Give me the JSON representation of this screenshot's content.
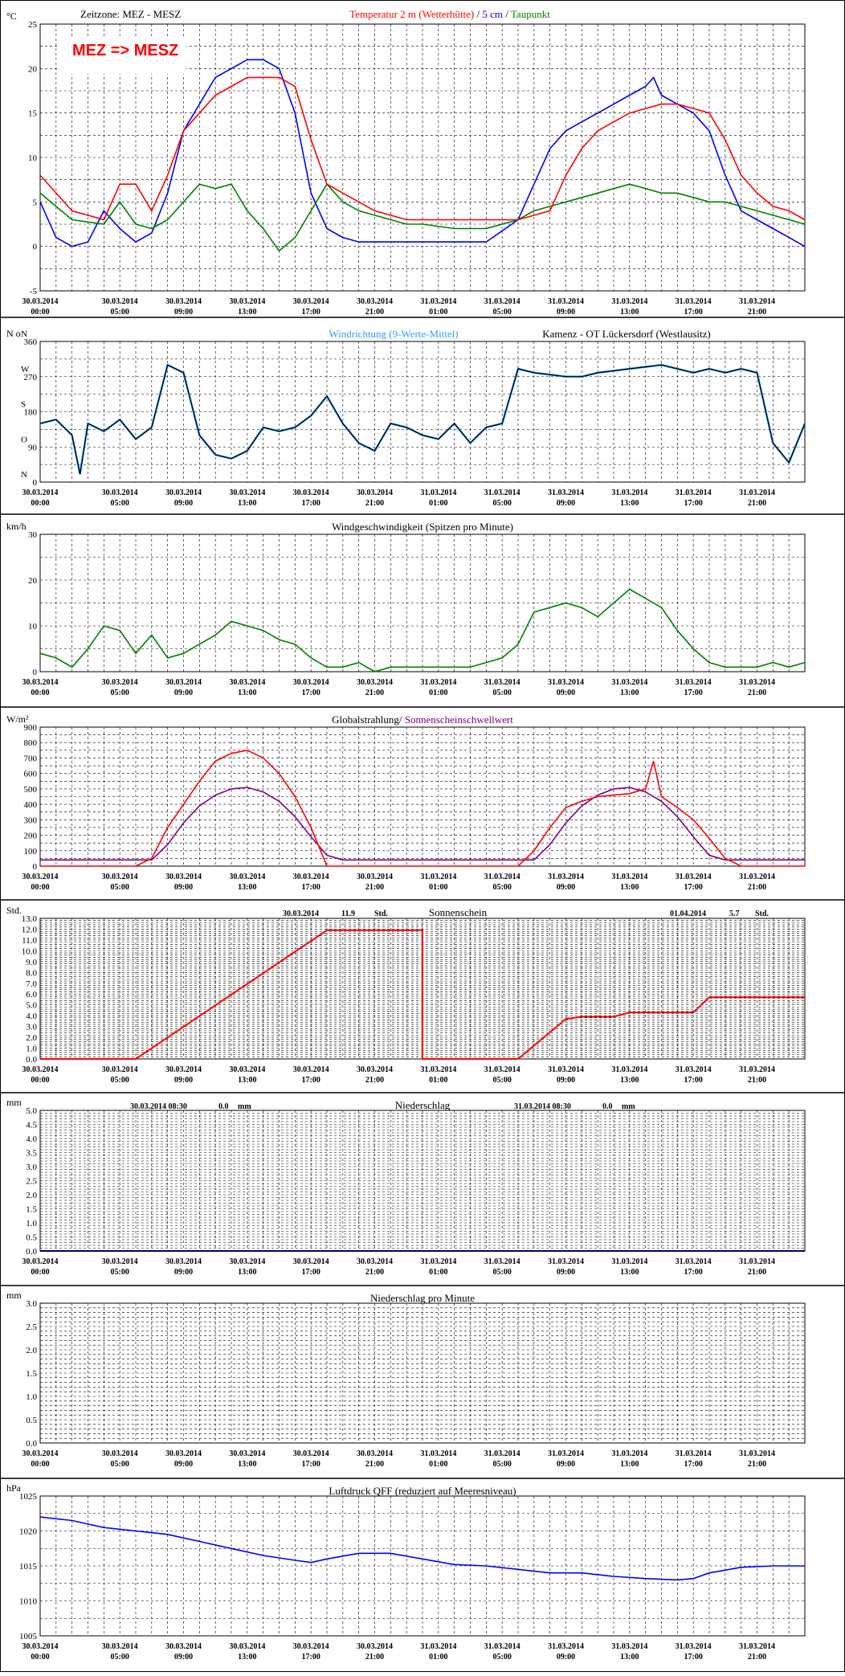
{
  "header": {
    "timezone_label": "Zeitzone: MEZ - MESZ",
    "dst_notice": "MEZ => MESZ"
  },
  "colors": {
    "background": "#ffffff",
    "grid": "#000000",
    "temperature": "#ff0000",
    "soil_5cm": "#0000ff",
    "dewpoint": "#008000",
    "wind_direction_raw": "#3399ff",
    "wind_direction_mean": "#000000",
    "wind_speed": "#008000",
    "radiation": "#ff0000",
    "sunshine_threshold": "#800080",
    "sunshine": "#ff0000",
    "precipitation": "#000080",
    "pressure": "#0000ff"
  },
  "x_axis": {
    "ticks": [
      {
        "date": "30.03.2014",
        "time": "00:00"
      },
      {
        "date": "30.03.2014",
        "time": "05:00"
      },
      {
        "date": "30.03.2014",
        "time": "09:00"
      },
      {
        "date": "30.03.2014",
        "time": "13:00"
      },
      {
        "date": "30.03.2014",
        "time": "17:00"
      },
      {
        "date": "30.03.2014",
        "time": "21:00"
      },
      {
        "date": "31.03.2014",
        "time": "01:00"
      },
      {
        "date": "31.03.2014",
        "time": "05:00"
      },
      {
        "date": "31.03.2014",
        "time": "09:00"
      },
      {
        "date": "31.03.2014",
        "time": "13:00"
      },
      {
        "date": "31.03.2014",
        "time": "17:00"
      },
      {
        "date": "31.03.2014",
        "time": "21:00"
      }
    ]
  },
  "chart_data": [
    {
      "type": "line",
      "unit": "°C",
      "title_parts": [
        "Temperatur 2 m (Wetterhütte)",
        "  /  ",
        "5 cm",
        " / ",
        "Taupunkt"
      ],
      "ylim": [
        -5,
        25
      ],
      "yticks": [
        "25",
        "20",
        "15",
        "10",
        "5",
        "0",
        "-5"
      ],
      "series": [
        {
          "name": "Temperatur 2 m (Wetterhütte)",
          "x": [
            0,
            2,
            4,
            5,
            6,
            7,
            8,
            9,
            10,
            11,
            12,
            13,
            14,
            15,
            16,
            17,
            18,
            19,
            20,
            21,
            22,
            23,
            24,
            26,
            28,
            30,
            32,
            33,
            34,
            35,
            36,
            37,
            38,
            39,
            40,
            41,
            42,
            43,
            44,
            45,
            46,
            47,
            48
          ],
          "y": [
            8,
            4,
            3,
            7,
            7,
            4,
            8,
            13,
            15,
            17,
            18,
            19,
            19,
            19,
            18,
            12,
            7,
            6,
            5,
            4,
            3.5,
            3,
            3,
            3,
            3,
            3,
            4,
            8,
            11,
            13,
            14,
            15,
            15.5,
            16,
            16,
            15.5,
            15,
            12,
            8,
            6,
            4.5,
            4,
            3
          ]
        },
        {
          "name": "5 cm",
          "x": [
            0,
            1,
            2,
            3,
            4,
            5,
            6,
            7,
            8,
            9,
            10,
            11,
            12,
            13,
            14,
            15,
            16,
            17,
            18,
            19,
            20,
            21,
            22,
            23,
            24,
            26,
            28,
            30,
            31,
            32,
            33,
            34,
            35,
            36,
            37,
            38,
            38.5,
            39,
            40,
            41,
            42,
            43,
            44,
            45,
            46,
            47,
            48
          ],
          "y": [
            5,
            1,
            0,
            0.5,
            4,
            2,
            0.5,
            1.5,
            6,
            13,
            16,
            19,
            20,
            21,
            21,
            20,
            15,
            6,
            2,
            1,
            0.5,
            0.5,
            0.5,
            0.5,
            0.5,
            0.5,
            0.5,
            3,
            7,
            11,
            13,
            14,
            15,
            16,
            17,
            18,
            19,
            17,
            16,
            15,
            13,
            8,
            4,
            3,
            2,
            1,
            0
          ]
        },
        {
          "name": "Taupunkt",
          "x": [
            0,
            2,
            4,
            5,
            6,
            7,
            8,
            9,
            10,
            11,
            12,
            13,
            14,
            15,
            16,
            17,
            18,
            19,
            20,
            21,
            22,
            23,
            24,
            26,
            28,
            30,
            31,
            32,
            33,
            34,
            35,
            36,
            37,
            38,
            39,
            40,
            41,
            42,
            43,
            44,
            45,
            46,
            47,
            48
          ],
          "y": [
            6,
            3,
            2.5,
            5,
            2.5,
            2,
            3,
            5,
            7,
            6.5,
            7,
            4,
            2,
            -0.5,
            1,
            4,
            7,
            5,
            4,
            3.5,
            3,
            2.5,
            2.5,
            2,
            2,
            3,
            4,
            4.5,
            5,
            5.5,
            6,
            6.5,
            7,
            6.5,
            6,
            6,
            5.5,
            5,
            5,
            4.5,
            4,
            3.5,
            3,
            2.5
          ]
        }
      ]
    },
    {
      "type": "line",
      "title": "Windrichtung (9-Werte-Mittel)",
      "station": "Kamenz - OT Lückersdorf (Westlausitz)",
      "unit": "N o",
      "ylim": [
        0,
        360
      ],
      "yticks": [
        "360",
        "270",
        "180",
        "90",
        "0"
      ],
      "compass": [
        "N",
        "W",
        "S",
        "O",
        "N"
      ],
      "series": [
        {
          "name": "Windrichtung (9-Werte-Mittel)",
          "x": [
            0,
            1,
            2,
            2.5,
            3,
            4,
            5,
            6,
            7,
            8,
            9,
            10,
            11,
            12,
            13,
            14,
            15,
            16,
            17,
            18,
            19,
            20,
            21,
            22,
            23,
            24,
            25,
            26,
            27,
            28,
            29,
            30,
            31,
            32,
            33,
            34,
            35,
            36,
            37,
            38,
            39,
            40,
            41,
            42,
            43,
            44,
            45,
            46,
            47,
            48
          ],
          "y": [
            150,
            160,
            120,
            20,
            150,
            130,
            160,
            110,
            140,
            300,
            280,
            120,
            70,
            60,
            80,
            140,
            130,
            140,
            170,
            220,
            150,
            100,
            80,
            150,
            140,
            120,
            110,
            150,
            100,
            140,
            150,
            290,
            280,
            275,
            270,
            270,
            280,
            285,
            290,
            295,
            300,
            290,
            280,
            290,
            280,
            290,
            280,
            100,
            50,
            150
          ]
        }
      ]
    },
    {
      "type": "line",
      "title": "Windgeschwindigkeit (Spitzen pro Minute)",
      "unit": "km/h",
      "ylim": [
        0,
        30
      ],
      "yticks": [
        "30",
        "20",
        "10",
        "0"
      ],
      "series": [
        {
          "name": "Windgeschwindigkeit (Spitzen pro Minute)",
          "x": [
            0,
            1,
            2,
            3,
            4,
            5,
            6,
            7,
            8,
            9,
            10,
            11,
            12,
            13,
            14,
            15,
            16,
            17,
            18,
            19,
            20,
            21,
            22,
            23,
            24,
            25,
            26,
            27,
            28,
            29,
            30,
            31,
            32,
            33,
            34,
            35,
            36,
            37,
            38,
            39,
            40,
            41,
            42,
            43,
            44,
            45,
            46,
            47,
            48
          ],
          "y": [
            4,
            3,
            1,
            5,
            10,
            9,
            4,
            8,
            3,
            4,
            6,
            8,
            11,
            10,
            9,
            7,
            6,
            3,
            1,
            1,
            2,
            0,
            1,
            1,
            1,
            1,
            1,
            1,
            2,
            3,
            6,
            13,
            14,
            15,
            14,
            12,
            15,
            18,
            16,
            14,
            9,
            5,
            2,
            1,
            1,
            1,
            2,
            1,
            2
          ]
        }
      ]
    },
    {
      "type": "line",
      "title_parts": [
        "Globalstrahlung/ ",
        "Sonnenscheinschwellwert"
      ],
      "unit": "W/m²",
      "ylim": [
        0,
        900
      ],
      "yticks": [
        "900",
        "800",
        "700",
        "600",
        "500",
        "400",
        "300",
        "200",
        "100",
        "0"
      ],
      "series": [
        {
          "name": "Globalstrahlung",
          "x": [
            0,
            6,
            7,
            8,
            9,
            10,
            11,
            12,
            13,
            14,
            15,
            16,
            17,
            18,
            20,
            24,
            28,
            30,
            31,
            32,
            33,
            34,
            35,
            36,
            37,
            38,
            38.5,
            39,
            40,
            41,
            42,
            43,
            44,
            48
          ],
          "y": [
            0,
            0,
            50,
            250,
            400,
            550,
            680,
            730,
            750,
            700,
            600,
            450,
            250,
            0,
            0,
            0,
            0,
            0,
            100,
            250,
            380,
            420,
            450,
            460,
            470,
            500,
            680,
            450,
            380,
            300,
            180,
            50,
            0,
            0
          ]
        },
        {
          "name": "Sonnenscheinschwellwert",
          "x": [
            0,
            6,
            7,
            8,
            9,
            10,
            11,
            12,
            13,
            14,
            15,
            16,
            17,
            18,
            19,
            30,
            31,
            32,
            33,
            34,
            35,
            36,
            37,
            38,
            39,
            40,
            41,
            42,
            43,
            44,
            48
          ],
          "y": [
            40,
            40,
            40,
            140,
            280,
            390,
            460,
            500,
            510,
            480,
            420,
            320,
            190,
            70,
            40,
            40,
            40,
            140,
            280,
            390,
            460,
            500,
            510,
            480,
            420,
            320,
            190,
            70,
            40,
            40,
            40
          ]
        }
      ]
    },
    {
      "type": "line",
      "title": "Sonnenschein",
      "unit": "Std.",
      "day_totals": [
        {
          "date": "30.03.2014",
          "value": "11.9",
          "unit": "Std."
        },
        {
          "date": "01.04.2014",
          "value": "5.7",
          "unit": "Std."
        }
      ],
      "ylim": [
        0,
        13
      ],
      "yticks": [
        "13.0",
        "12.0",
        "11.0",
        "10.0",
        "9.0",
        "8.0",
        "7.0",
        "6.0",
        "5.0",
        "4.0",
        "3.0",
        "2.0",
        "1.0",
        "0.0"
      ],
      "series": [
        {
          "name": "Sonnenschein",
          "x": [
            0,
            6,
            18,
            24,
            24,
            30,
            33,
            34,
            36,
            37,
            41,
            42,
            48
          ],
          "y": [
            0,
            0,
            11.9,
            11.9,
            0,
            0,
            3.7,
            3.9,
            3.9,
            4.3,
            4.3,
            5.7,
            5.7
          ]
        }
      ]
    },
    {
      "type": "line",
      "title": "Niederschlag",
      "unit": "mm",
      "day_totals": [
        {
          "date": "30.03.2014 08:30",
          "value": "0.0",
          "unit": "mm"
        },
        {
          "date": "31.03.2014 08:30",
          "value": "0.0",
          "unit": "mm"
        }
      ],
      "ylim": [
        0,
        5
      ],
      "yticks": [
        "5.0",
        "4.5",
        "4.0",
        "3.5",
        "3.0",
        "2.5",
        "2.0",
        "1.5",
        "1.0",
        "0.5",
        "0.0"
      ],
      "series": [
        {
          "name": "Niederschlag",
          "x": [
            0,
            48
          ],
          "y": [
            0,
            0
          ]
        }
      ]
    },
    {
      "type": "line",
      "title": "Niederschlag pro Minute",
      "unit": "mm",
      "ylim": [
        0,
        3
      ],
      "yticks": [
        "3.0",
        "2.5",
        "2.0",
        "1.5",
        "1.0",
        "0.5",
        "0.0"
      ],
      "series": []
    },
    {
      "type": "line",
      "title": "Luftdruck QFF (reduziert auf Meeresniveau)",
      "unit": "hPa",
      "ylim": [
        1005,
        1025
      ],
      "yticks": [
        "1025",
        "1020",
        "1015",
        "1010",
        "1005"
      ],
      "series": [
        {
          "name": "Luftdruck QFF",
          "x": [
            0,
            2,
            4,
            6,
            8,
            10,
            12,
            14,
            16,
            17,
            18,
            20,
            22,
            24,
            26,
            28,
            30,
            32,
            34,
            36,
            38,
            40,
            41,
            42,
            44,
            46,
            48
          ],
          "y": [
            1022,
            1021.5,
            1020.5,
            1020,
            1019.5,
            1018.5,
            1017.5,
            1016.5,
            1015.8,
            1015.5,
            1016,
            1016.8,
            1016.8,
            1016,
            1015.2,
            1015,
            1014.5,
            1014,
            1014,
            1013.5,
            1013.2,
            1013,
            1013.2,
            1014,
            1014.8,
            1015,
            1015
          ]
        }
      ]
    }
  ]
}
